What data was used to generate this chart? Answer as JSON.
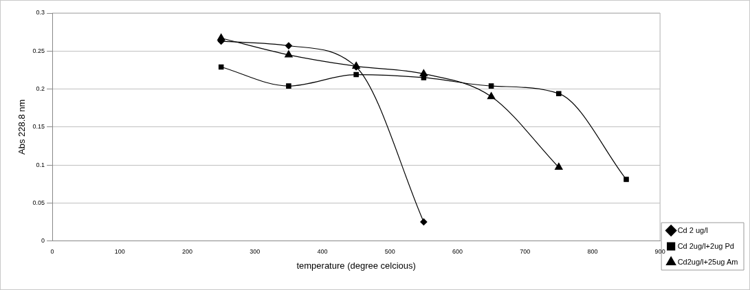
{
  "chart_data": {
    "type": "line",
    "xlabel": "temperature (degree celcious)",
    "ylabel": "Abs 228.8 nm",
    "xlim": [
      0,
      900
    ],
    "xticks": [
      0,
      100,
      200,
      300,
      400,
      500,
      600,
      700,
      800,
      900
    ],
    "ylim": [
      0,
      0.3
    ],
    "yticks": [
      0,
      0.05,
      0.1,
      0.15,
      0.2,
      0.25,
      0.3
    ],
    "grid": "y",
    "legend": "bottom right",
    "line_style": "solid",
    "series": [
      {
        "name": "Cd 2 ug/l",
        "color": "#000000",
        "marker": "diamond",
        "x": [
          250,
          350,
          450,
          550
        ],
        "values": [
          0.263,
          0.257,
          0.229,
          0.025
        ]
      },
      {
        "name": "Cd 2ug/l+2ug Pd",
        "color": "#000000",
        "marker": "square",
        "x": [
          250,
          350,
          450,
          550,
          650,
          750,
          850
        ],
        "values": [
          0.229,
          0.204,
          0.219,
          0.215,
          0.204,
          0.194,
          0.081
        ]
      },
      {
        "name": "Cd2ug/l+25ug Am",
        "color": "#000000",
        "marker": "triangle",
        "x": [
          250,
          350,
          450,
          550,
          650,
          750
        ],
        "values": [
          0.267,
          0.245,
          0.23,
          0.22,
          0.19,
          0.097
        ]
      }
    ]
  }
}
